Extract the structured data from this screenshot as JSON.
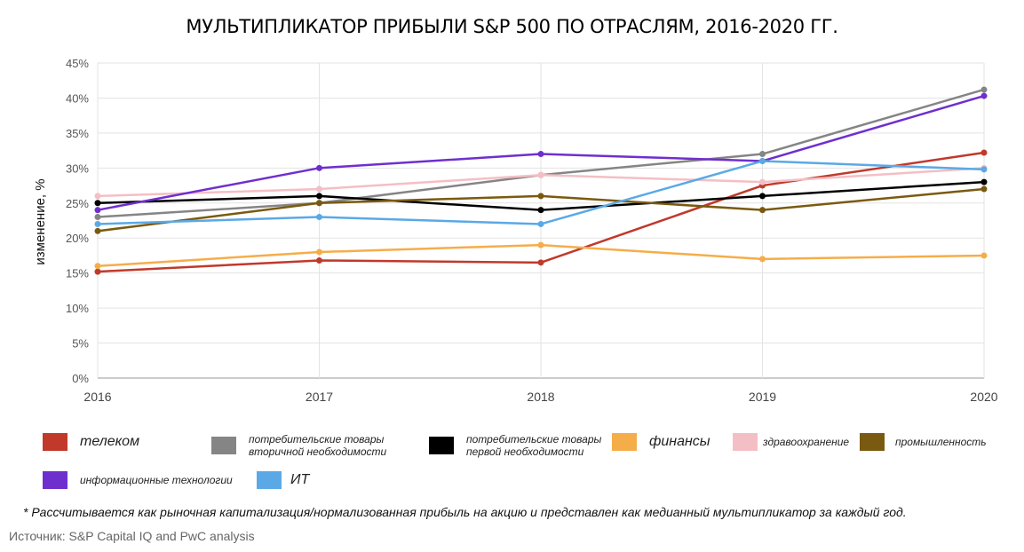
{
  "chart_data": {
    "type": "line",
    "title": "МУЛЬТИПЛИКАТОР ПРИБЫЛИ S&P 500 ПО ОТРАСЛЯМ, 2016-2020 ГГ.",
    "ylabel": "изменение, %",
    "xlabel": "",
    "x": [
      "2016",
      "2017",
      "2018",
      "2019",
      "2020"
    ],
    "ylim": [
      0,
      45
    ],
    "yticks": [
      "0%",
      "5%",
      "10%",
      "15%",
      "20%",
      "25%",
      "30%",
      "35%",
      "40%",
      "45%"
    ],
    "grid": true,
    "legend_placement": "bottom",
    "series": [
      {
        "name": "телеком",
        "color": "#c0392b",
        "values": [
          15.2,
          16.8,
          16.5,
          27.5,
          32.2
        ]
      },
      {
        "name": "потребительские товары вторичной необходимости",
        "color": "#858585",
        "values": [
          23,
          25,
          29,
          32,
          41.2
        ]
      },
      {
        "name": "потребительские товары первой необходимости",
        "color": "#000000",
        "values": [
          25,
          26,
          24,
          26,
          28
        ]
      },
      {
        "name": "финансы",
        "color": "#f5ad4a",
        "values": [
          16,
          18,
          19,
          17,
          17.5
        ]
      },
      {
        "name": "здравоохранение",
        "color": "#f4bfc4",
        "values": [
          26,
          27,
          29,
          28,
          30
        ]
      },
      {
        "name": "промышленность",
        "color": "#7a5a10",
        "values": [
          21,
          25,
          26,
          24,
          27
        ]
      },
      {
        "name": "информационные технологии",
        "color": "#6f2fcf",
        "values": [
          24,
          30,
          32,
          31,
          40.3
        ]
      },
      {
        "name": "ИТ",
        "color": "#5aa9e6",
        "values": [
          22,
          23,
          22,
          31,
          29.8
        ]
      }
    ]
  },
  "legend": [
    {
      "label": "телеком",
      "color": "#c0392b"
    },
    {
      "label": "потребительские товары вторичной необходимости",
      "line1": "потребительские товары",
      "line2": "вторичной необходимости",
      "color": "#858585"
    },
    {
      "label": "потребительские товары первой необходимости",
      "line1": "потребительские товары",
      "line2": "первой необходимости",
      "color": "#000000"
    },
    {
      "label": "финансы",
      "color": "#f5ad4a"
    },
    {
      "label": "здравоохранение",
      "color": "#f4bfc4"
    },
    {
      "label": "промышленность",
      "color": "#7a5a10"
    },
    {
      "label": "информационные технологии",
      "color": "#6f2fcf"
    },
    {
      "label": "ИТ",
      "color": "#5aa9e6"
    }
  ],
  "footnote": "* Рассчитывается как рыночная капитализация/нормализованная прибыль на акцию и представлен как медианный мультипликатор за каждый год.",
  "source": "Источник: S&P Capital IQ and PwC analysis"
}
